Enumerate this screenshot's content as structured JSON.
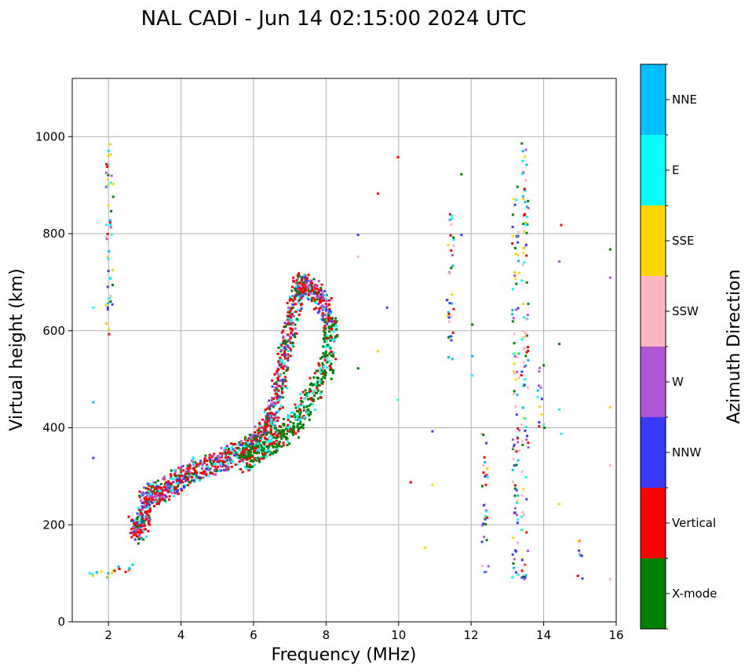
{
  "chart_data": {
    "type": "scatter",
    "title": "NAL CADI - Jun 14 02:15:00 2024 UTC",
    "xlabel": "Frequency (MHz)",
    "ylabel": "Virtual height (km)",
    "xlim": [
      1,
      16
    ],
    "ylim": [
      0,
      1120
    ],
    "xticks": [
      2,
      4,
      6,
      8,
      10,
      12,
      14,
      16
    ],
    "yticks": [
      0,
      200,
      400,
      600,
      800,
      1000
    ],
    "grid": true,
    "colorbar": {
      "label": "Azimuth Direction",
      "categories": [
        {
          "name": "X-mode",
          "color": "#008000"
        },
        {
          "name": "Vertical",
          "color": "#ff0000"
        },
        {
          "name": "NNW",
          "color": "#3a3aff"
        },
        {
          "name": "W",
          "color": "#b157d6"
        },
        {
          "name": "SSW",
          "color": "#ffb6c1"
        },
        {
          "name": "SSE",
          "color": "#ffd700"
        },
        {
          "name": "E",
          "color": "#00ffff"
        },
        {
          "name": "NNE",
          "color": "#00bfff"
        }
      ]
    },
    "trace_main": [
      [
        2.7,
        200
      ],
      [
        2.8,
        185
      ],
      [
        2.9,
        210
      ],
      [
        3.0,
        240
      ],
      [
        3.0,
        260
      ],
      [
        3.2,
        265
      ],
      [
        3.4,
        270
      ],
      [
        3.6,
        280
      ],
      [
        3.8,
        290
      ],
      [
        4.0,
        300
      ],
      [
        4.2,
        310
      ],
      [
        4.5,
        320
      ],
      [
        4.8,
        325
      ],
      [
        5.0,
        330
      ],
      [
        5.2,
        340
      ],
      [
        5.5,
        350
      ],
      [
        5.8,
        360
      ],
      [
        6.0,
        375
      ],
      [
        6.2,
        390
      ],
      [
        6.4,
        410
      ],
      [
        6.5,
        430
      ],
      [
        6.6,
        460
      ],
      [
        6.7,
        500
      ],
      [
        6.8,
        540
      ],
      [
        6.9,
        580
      ],
      [
        7.0,
        620
      ],
      [
        7.1,
        660
      ],
      [
        7.2,
        690
      ],
      [
        7.3,
        700
      ],
      [
        7.5,
        690
      ],
      [
        7.7,
        680
      ],
      [
        7.9,
        660
      ],
      [
        8.0,
        640
      ],
      [
        8.1,
        600
      ]
    ],
    "trace_x_mode": [
      [
        5.6,
        330
      ],
      [
        5.8,
        340
      ],
      [
        6.0,
        350
      ],
      [
        6.2,
        360
      ],
      [
        6.4,
        370
      ],
      [
        6.6,
        380
      ],
      [
        6.8,
        390
      ],
      [
        7.0,
        400
      ],
      [
        7.2,
        420
      ],
      [
        7.4,
        440
      ],
      [
        7.6,
        470
      ],
      [
        7.8,
        500
      ],
      [
        8.0,
        540
      ],
      [
        8.1,
        580
      ],
      [
        8.1,
        620
      ]
    ],
    "low_echoes": [
      [
        1.5,
        100
      ],
      [
        1.7,
        105
      ],
      [
        1.9,
        100
      ],
      [
        2.1,
        105
      ],
      [
        2.3,
        110
      ],
      [
        2.5,
        105
      ],
      [
        2.6,
        115
      ]
    ],
    "high_scatter_columns": [
      {
        "freq": 2.0,
        "from": 560,
        "to": 1005
      },
      {
        "freq": 11.4,
        "from": 520,
        "to": 845
      },
      {
        "freq": 12.35,
        "from": 100,
        "to": 390
      },
      {
        "freq": 13.2,
        "from": 90,
        "to": 910
      },
      {
        "freq": 13.45,
        "from": 90,
        "to": 995
      },
      {
        "freq": 13.9,
        "from": 390,
        "to": 535
      },
      {
        "freq": 15.0,
        "from": 90,
        "to": 170
      }
    ],
    "isolated_echoes": [
      [
        1.55,
        650
      ],
      [
        1.55,
        455
      ],
      [
        1.55,
        340
      ],
      [
        8.85,
        800
      ],
      [
        8.85,
        755
      ],
      [
        8.85,
        525
      ],
      [
        9.4,
        885
      ],
      [
        9.4,
        560
      ],
      [
        9.65,
        650
      ],
      [
        9.95,
        960
      ],
      [
        9.95,
        460
      ],
      [
        10.3,
        290
      ],
      [
        10.7,
        155
      ],
      [
        10.9,
        395
      ],
      [
        10.9,
        285
      ],
      [
        11.7,
        925
      ],
      [
        11.7,
        800
      ],
      [
        12.0,
        615
      ],
      [
        12.0,
        550
      ],
      [
        12.0,
        510
      ],
      [
        14.45,
        820
      ],
      [
        14.4,
        745
      ],
      [
        14.4,
        575
      ],
      [
        14.4,
        440
      ],
      [
        14.45,
        390
      ],
      [
        14.4,
        245
      ],
      [
        15.8,
        770
      ],
      [
        15.8,
        712
      ],
      [
        15.8,
        445
      ],
      [
        15.8,
        325
      ],
      [
        15.8,
        90
      ]
    ]
  }
}
